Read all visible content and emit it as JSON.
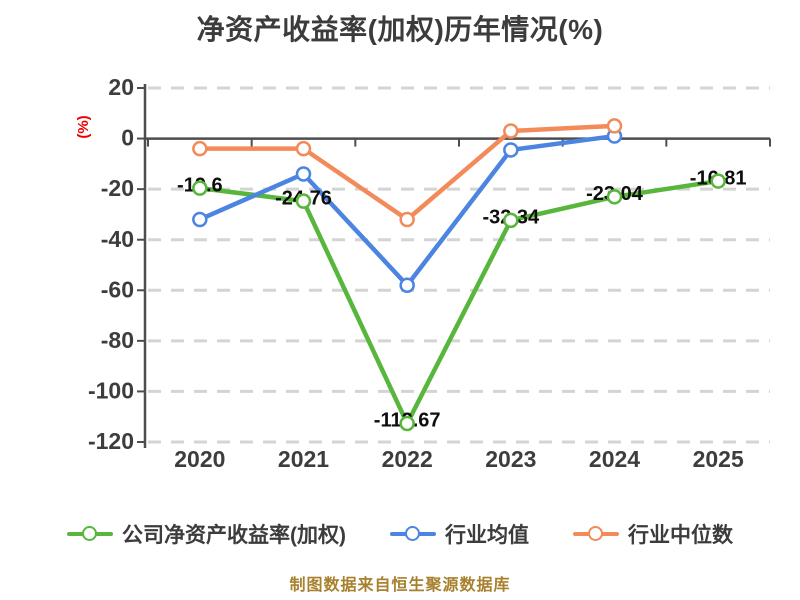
{
  "title": "净资产收益率(加权)历年情况(%)",
  "footer": "制图数据来自恒生聚源数据库",
  "chart_data": {
    "type": "line",
    "categories": [
      "2020",
      "2021",
      "2022",
      "2023",
      "2024",
      "2025"
    ],
    "ylabel": "(%)",
    "ylim": [
      -120,
      20
    ],
    "yticks": [
      20,
      0,
      -20,
      -40,
      -60,
      -80,
      -100,
      -120
    ],
    "grid": "horizontal-dashed",
    "legend_position": "bottom",
    "series": [
      {
        "name": "公司净资产收益率(加权)",
        "color": "#58b63c",
        "values": [
          -19.6,
          -24.76,
          -112.67,
          -32.34,
          -23.04,
          -16.81
        ],
        "point_labels": [
          "-19.6",
          "-24.76",
          "-112.67",
          "-32.34",
          "-23.04",
          "-16.81"
        ]
      },
      {
        "name": "行业均值",
        "color": "#4c84e2",
        "values": [
          -32,
          -14,
          -58,
          -4.5,
          1,
          null
        ]
      },
      {
        "name": "行业中位数",
        "color": "#f28a59",
        "values": [
          -4,
          -4,
          -32,
          3,
          5,
          null
        ]
      }
    ]
  },
  "style": {
    "background": "#ffffff",
    "title_color": "#3c3c3c",
    "grid_color": "#d4d4d4",
    "axis_color": "#4d4d4d",
    "tick_label_color": "#3d3d3d",
    "data_label_color": "#0e0e0e",
    "ylabel_color": "#ee0000",
    "legend_text_color": "#3c3c3c",
    "footer_color": "#a8812f",
    "marker_fill": "#ffffff"
  }
}
